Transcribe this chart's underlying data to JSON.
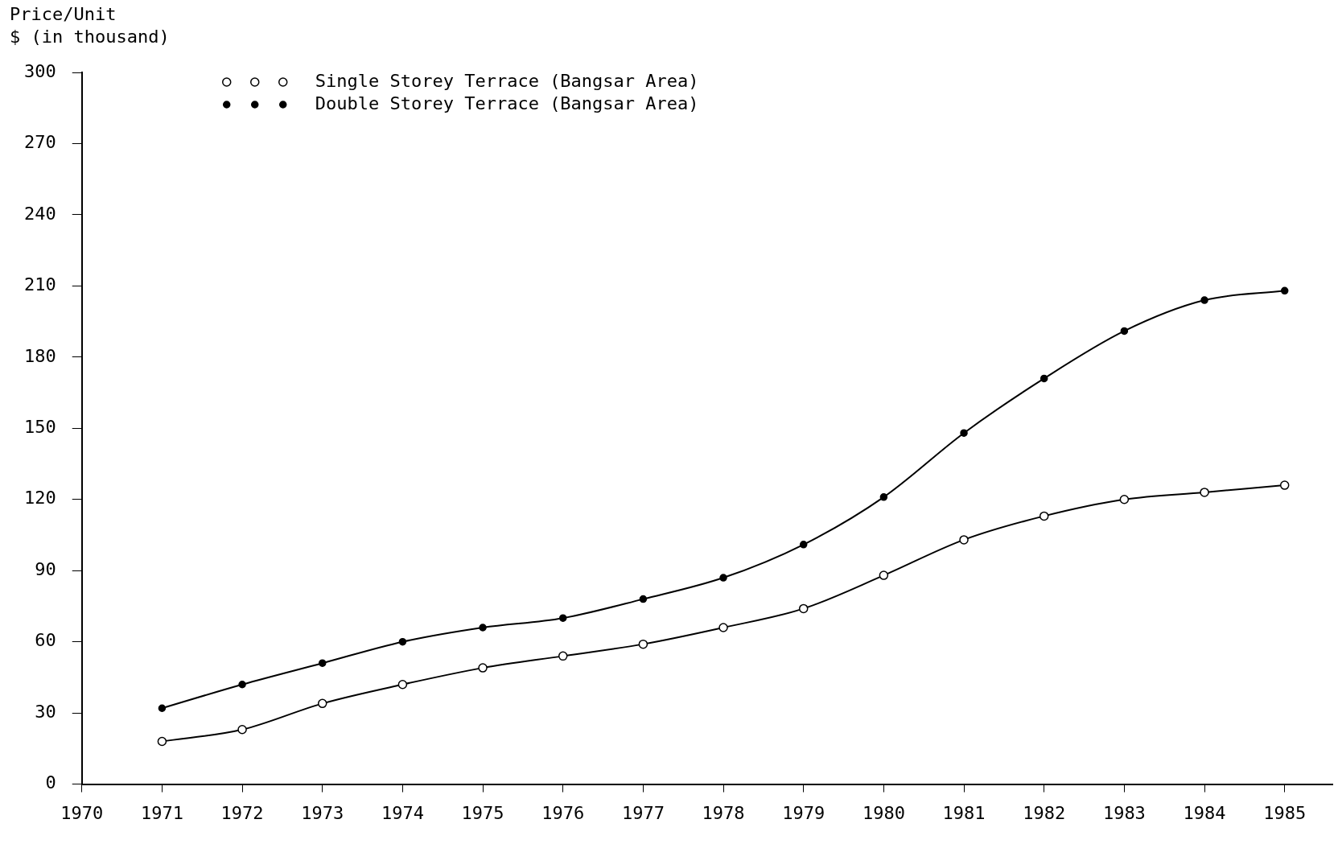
{
  "chart_data": {
    "type": "line",
    "ylabel": "Price/Unit\n$ (in thousand)",
    "x": [
      1971,
      1972,
      1973,
      1974,
      1975,
      1976,
      1977,
      1978,
      1979,
      1980,
      1981,
      1982,
      1983,
      1984,
      1985
    ],
    "series": [
      {
        "name": "Single Storey Terrace (Bangsar Area)",
        "color": "#000000",
        "marker": "circle",
        "values": [
          18,
          23,
          34,
          42,
          49,
          54,
          59,
          66,
          74,
          88,
          103,
          113,
          120,
          123,
          126
        ]
      },
      {
        "name": "Double Storey Terrace (Bangsar Area)",
        "color": "#000000",
        "marker": "circle",
        "values": [
          32,
          42,
          51,
          60,
          66,
          70,
          78,
          87,
          101,
          121,
          148,
          171,
          191,
          204,
          208
        ]
      }
    ],
    "xlim": [
      1970,
      1985.6
    ],
    "xticks": [
      1970,
      1971,
      1972,
      1973,
      1974,
      1975,
      1976,
      1977,
      1978,
      1979,
      1980,
      1981,
      1982,
      1983,
      1984,
      1985
    ],
    "ylim": [
      0,
      300
    ],
    "yticks": [
      0,
      30,
      60,
      90,
      120,
      150,
      180,
      210,
      240,
      270,
      300
    ],
    "grid": false,
    "legend": "top left",
    "line_style": "solid"
  }
}
